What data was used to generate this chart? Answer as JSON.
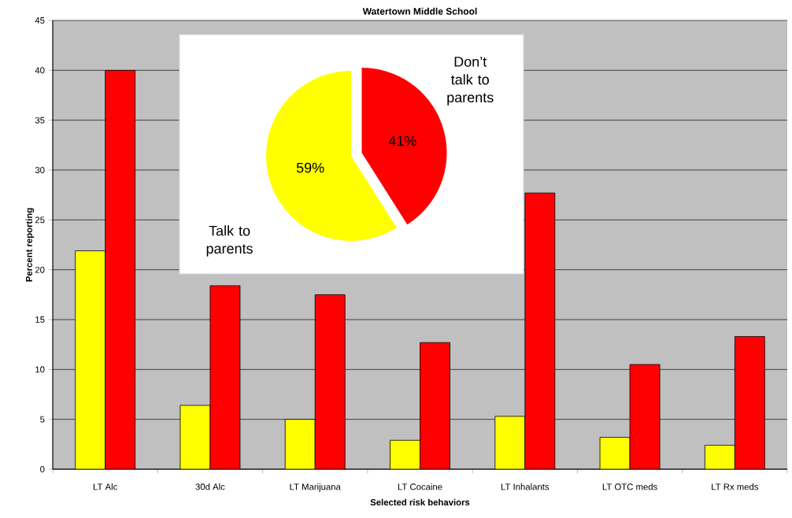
{
  "chart_data": [
    {
      "type": "bar",
      "title": "Watertown Middle School",
      "xlabel": "Selected risk behaviors",
      "ylabel": "Percent reporting",
      "categories": [
        "LT Alc",
        "30d Alc",
        "LT Marijuana",
        "LT Cocaine",
        "LT Inhalants",
        "LT OTC  meds",
        "LT Rx meds"
      ],
      "series": [
        {
          "color": "#ffff00",
          "values": [
            21.9,
            6.4,
            5.0,
            2.9,
            5.3,
            3.2,
            2.4
          ]
        },
        {
          "color": "#ff0000",
          "values": [
            40.0,
            18.4,
            17.5,
            12.7,
            27.7,
            10.5,
            13.3
          ]
        }
      ],
      "ylim": [
        0,
        45
      ],
      "yticks": [
        0,
        5,
        10,
        15,
        20,
        25,
        30,
        35,
        40,
        45
      ],
      "grid": "y"
    },
    {
      "type": "pie",
      "categories": [
        "Talk to parents",
        "Don’t talk to parents"
      ],
      "values": [
        59,
        41
      ],
      "colors": [
        "#ffff00",
        "#ff0000"
      ],
      "value_labels": [
        "59%",
        "41%"
      ]
    }
  ]
}
